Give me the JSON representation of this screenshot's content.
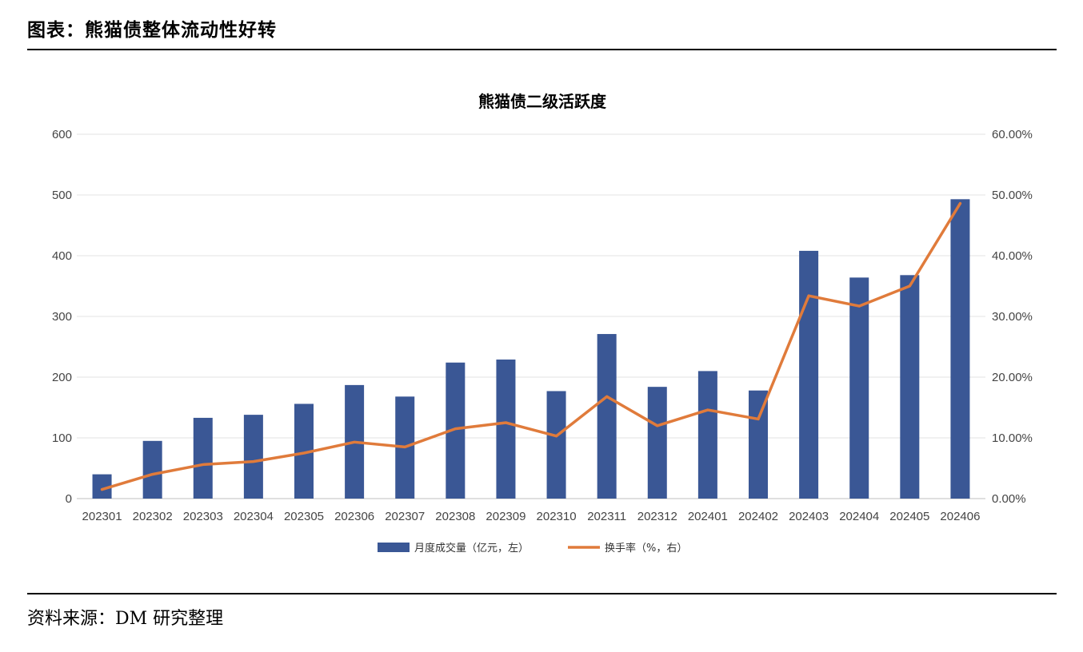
{
  "figure_title": "图表：熊猫债整体流动性好转",
  "source_note": "资料来源：DM 研究整理",
  "chart_data": {
    "type": "bar+line",
    "title": "熊猫债二级活跃度",
    "categories": [
      "202301",
      "202302",
      "202303",
      "202304",
      "202305",
      "202306",
      "202307",
      "202308",
      "202309",
      "202310",
      "202311",
      "202312",
      "202401",
      "202402",
      "202403",
      "202404",
      "202405",
      "202406"
    ],
    "series": [
      {
        "name": "月度成交量（亿元，左）",
        "type": "bar",
        "axis": "left",
        "color": "#3a5795",
        "values": [
          40,
          95,
          133,
          138,
          156,
          187,
          168,
          224,
          229,
          177,
          271,
          184,
          210,
          178,
          408,
          364,
          368,
          493
        ]
      },
      {
        "name": "换手率（%，右）",
        "type": "line",
        "axis": "right",
        "color": "#e07b3b",
        "values": [
          1.5,
          4.0,
          5.6,
          6.1,
          7.5,
          9.3,
          8.5,
          11.5,
          12.5,
          10.3,
          16.8,
          12.0,
          14.6,
          13.1,
          33.4,
          31.7,
          35.0,
          48.6
        ]
      }
    ],
    "y_left": {
      "min": 0,
      "max": 600,
      "ticks": [
        "0",
        "100",
        "200",
        "300",
        "400",
        "500",
        "600"
      ]
    },
    "y_right": {
      "min": 0,
      "max": 60,
      "ticks": [
        "0.00%",
        "10.00%",
        "20.00%",
        "30.00%",
        "40.00%",
        "50.00%",
        "60.00%"
      ]
    },
    "grid": true,
    "legend_position": "bottom"
  }
}
